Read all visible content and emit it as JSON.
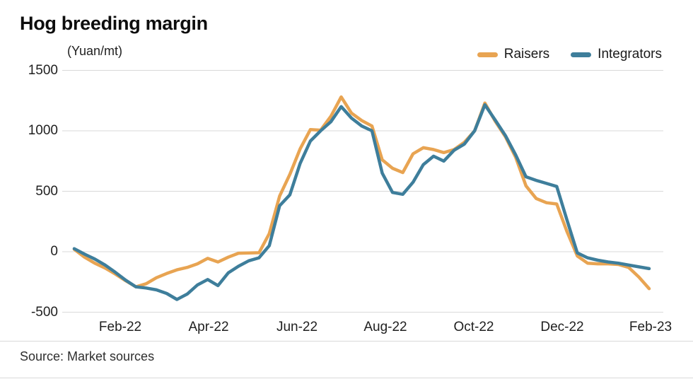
{
  "header": {
    "title": "Hog breeding margin",
    "unit_label": "(Yuan/mt)"
  },
  "legend": [
    {
      "label": "Raisers",
      "color": "#E8A452"
    },
    {
      "label": "Integrators",
      "color": "#3E7E9B"
    }
  ],
  "source": {
    "text": "Source: Market sources"
  },
  "colors": {
    "raisers": "#E8A452",
    "integrators": "#3E7E9B",
    "gridline": "#d9d9d9",
    "title_text": "#0d0d0d",
    "axis_text": "#1f1f1f"
  },
  "chart_data": {
    "type": "line",
    "title": "Hog breeding margin",
    "ylabel": "(Yuan/mt)",
    "ylim": [
      -500,
      1500
    ],
    "yticks": [
      1500,
      1000,
      500,
      0,
      -500
    ],
    "xticklabels": [
      "Feb-22",
      "Apr-22",
      "Jun-22",
      "Aug-22",
      "Oct-22",
      "Dec-22",
      "Feb-23"
    ],
    "x_start": "Jan-22",
    "x_end": "Feb-23",
    "x_frequency": "weekly",
    "grid": "horizontal",
    "legend_position": "top-right",
    "series": [
      {
        "name": "Raisers",
        "color": "#E8A452",
        "values": [
          20,
          -45,
          -95,
          -135,
          -185,
          -240,
          -290,
          -265,
          -215,
          -180,
          -150,
          -130,
          -100,
          -55,
          -85,
          -45,
          -12,
          -10,
          -8,
          150,
          460,
          640,
          850,
          1010,
          1005,
          1120,
          1280,
          1147,
          1085,
          1040,
          760,
          690,
          655,
          810,
          860,
          845,
          820,
          845,
          905,
          1000,
          1230,
          1080,
          950,
          780,
          545,
          440,
          405,
          395,
          165,
          -35,
          -95,
          -100,
          -100,
          -105,
          -130,
          -210,
          -305
        ]
      },
      {
        "name": "Integrators",
        "color": "#3E7E9B",
        "values": [
          25,
          -20,
          -60,
          -110,
          -170,
          -235,
          -290,
          -300,
          -315,
          -345,
          -395,
          -350,
          -275,
          -230,
          -280,
          -175,
          -120,
          -75,
          -50,
          50,
          380,
          470,
          730,
          915,
          1000,
          1075,
          1200,
          1105,
          1040,
          1000,
          650,
          490,
          475,
          575,
          720,
          790,
          750,
          840,
          890,
          1000,
          1215,
          1090,
          960,
          800,
          620,
          590,
          565,
          540,
          260,
          -10,
          -50,
          -70,
          -85,
          -95,
          -110,
          -125,
          -140
        ]
      }
    ]
  }
}
